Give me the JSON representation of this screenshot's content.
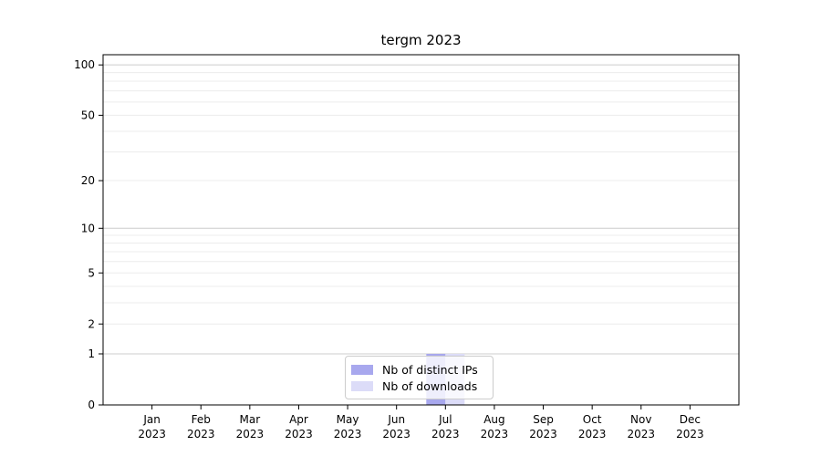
{
  "title": "tergm 2023",
  "chart_data": {
    "type": "bar",
    "title": "tergm 2023",
    "categories": [
      "Jan",
      "Feb",
      "Mar",
      "Apr",
      "May",
      "Jun",
      "Jul",
      "Aug",
      "Sep",
      "Oct",
      "Nov",
      "Dec"
    ],
    "year_label": "2023",
    "series": [
      {
        "name": "Nb of distinct IPs",
        "color": "#a8a8ee",
        "values": [
          0,
          0,
          0,
          0,
          0,
          0,
          1,
          0,
          0,
          0,
          0,
          0
        ]
      },
      {
        "name": "Nb of downloads",
        "color": "#dcdcf8",
        "values": [
          0,
          0,
          0,
          0,
          0,
          0,
          1,
          0,
          0,
          0,
          0,
          0
        ]
      }
    ],
    "yscale": "log1p",
    "ylim": [
      0,
      115
    ],
    "ytick_labels": [
      100,
      50,
      20,
      10,
      5,
      2,
      1,
      0
    ],
    "gridlines": {
      "major": [
        1,
        10,
        100
      ],
      "minor": [
        2,
        3,
        4,
        5,
        6,
        7,
        8,
        9,
        20,
        30,
        40,
        50,
        60,
        70,
        80,
        90
      ]
    },
    "grid": true,
    "legend_position": "lower center",
    "colors": {
      "axis": "#000000",
      "text": "#000000",
      "major_grid": "#cccccc",
      "minor_grid": "#ececec",
      "background": "#ffffff"
    }
  }
}
